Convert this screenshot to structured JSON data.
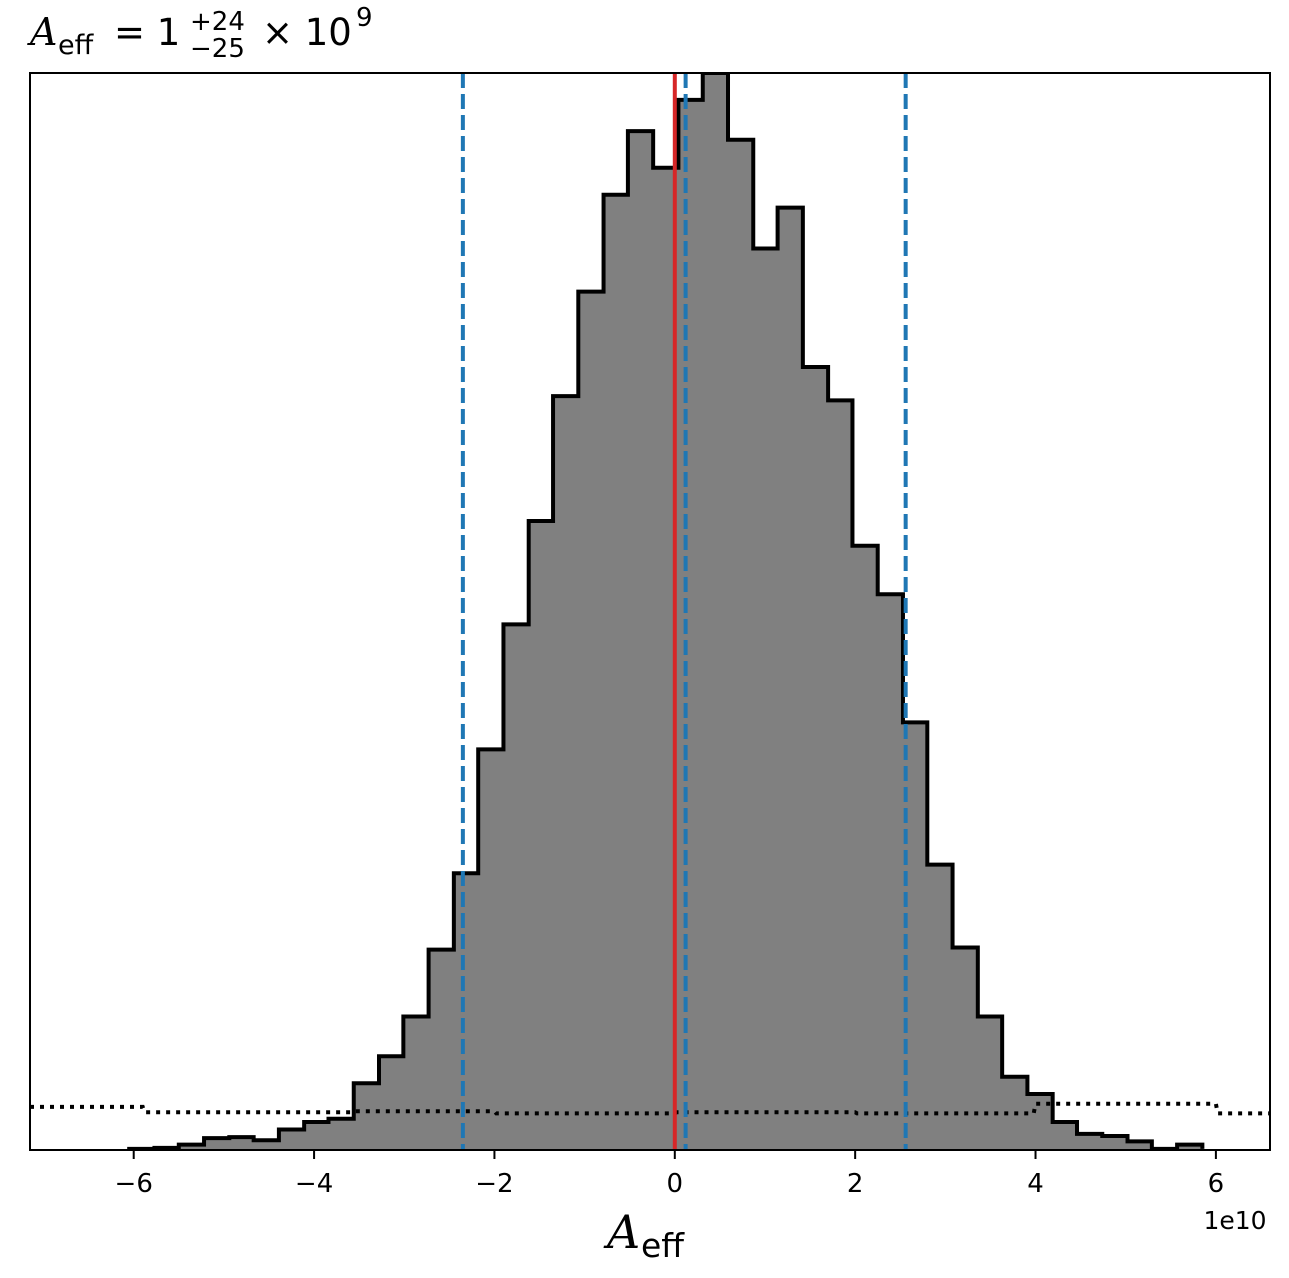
{
  "chart_data": {
    "type": "bar",
    "title": {
      "symbol": "A",
      "symbol_sub": "eff",
      "equals": "= 1",
      "sup": "+24",
      "sub": "−25",
      "times": "× 10",
      "exp": "9"
    },
    "xlabel": {
      "symbol": "A",
      "sub": "eff"
    },
    "ylabel": "",
    "offset_label": "1e10",
    "xlim": [
      -7.15,
      6.6
    ],
    "ylim": [
      0,
      1.0
    ],
    "x_ticks": [
      -6,
      -4,
      -2,
      0,
      2,
      4,
      6
    ],
    "x_tick_labels": [
      "−6",
      "−4",
      "−2",
      "0",
      "2",
      "4",
      "6"
    ],
    "grid": false,
    "histogram": {
      "bin_edges": [
        -6.05,
        -5.77,
        -5.5,
        -5.22,
        -4.94,
        -4.67,
        -4.39,
        -4.11,
        -3.84,
        -3.56,
        -3.28,
        -3.01,
        -2.73,
        -2.45,
        -2.18,
        -1.9,
        -1.62,
        -1.35,
        -1.07,
        -0.79,
        -0.52,
        -0.24,
        0.04,
        0.31,
        0.59,
        0.87,
        1.14,
        1.42,
        1.7,
        1.97,
        2.25,
        2.53,
        2.8,
        3.08,
        3.36,
        3.63,
        3.91,
        4.19,
        4.46,
        4.74,
        5.02,
        5.29,
        5.57,
        5.85
      ],
      "counts": [
        0.001,
        0.002,
        0.005,
        0.011,
        0.012,
        0.009,
        0.019,
        0.026,
        0.029,
        0.062,
        0.087,
        0.124,
        0.186,
        0.257,
        0.372,
        0.488,
        0.584,
        0.7,
        0.797,
        0.887,
        0.946,
        0.912,
        0.975,
        1.0,
        0.938,
        0.837,
        0.875,
        0.727,
        0.696,
        0.561,
        0.516,
        0.397,
        0.265,
        0.188,
        0.124,
        0.068,
        0.052,
        0.026,
        0.015,
        0.013,
        0.008,
        0.001,
        0.005,
        0.001
      ],
      "fill": "#808080",
      "stroke": "#000000"
    },
    "prior": {
      "x": [
        -7.15,
        -5.9,
        -5.88,
        -3.6,
        -3.58,
        -2.0,
        -1.98,
        0.0,
        0.02,
        2.0,
        2.02,
        3.98,
        4.0,
        6.0,
        6.02,
        6.6
      ],
      "y": [
        0.04,
        0.04,
        0.035,
        0.035,
        0.036,
        0.036,
        0.034,
        0.034,
        0.035,
        0.035,
        0.034,
        0.034,
        0.043,
        0.043,
        0.034,
        0.034
      ],
      "style": "dotted",
      "color": "#000000"
    },
    "median_line": {
      "x": 0.0,
      "color": "#d62728"
    },
    "interval_lines": {
      "x": [
        -2.35,
        0.12,
        2.56
      ],
      "color": "#1f77b4",
      "style": "dashed"
    }
  }
}
